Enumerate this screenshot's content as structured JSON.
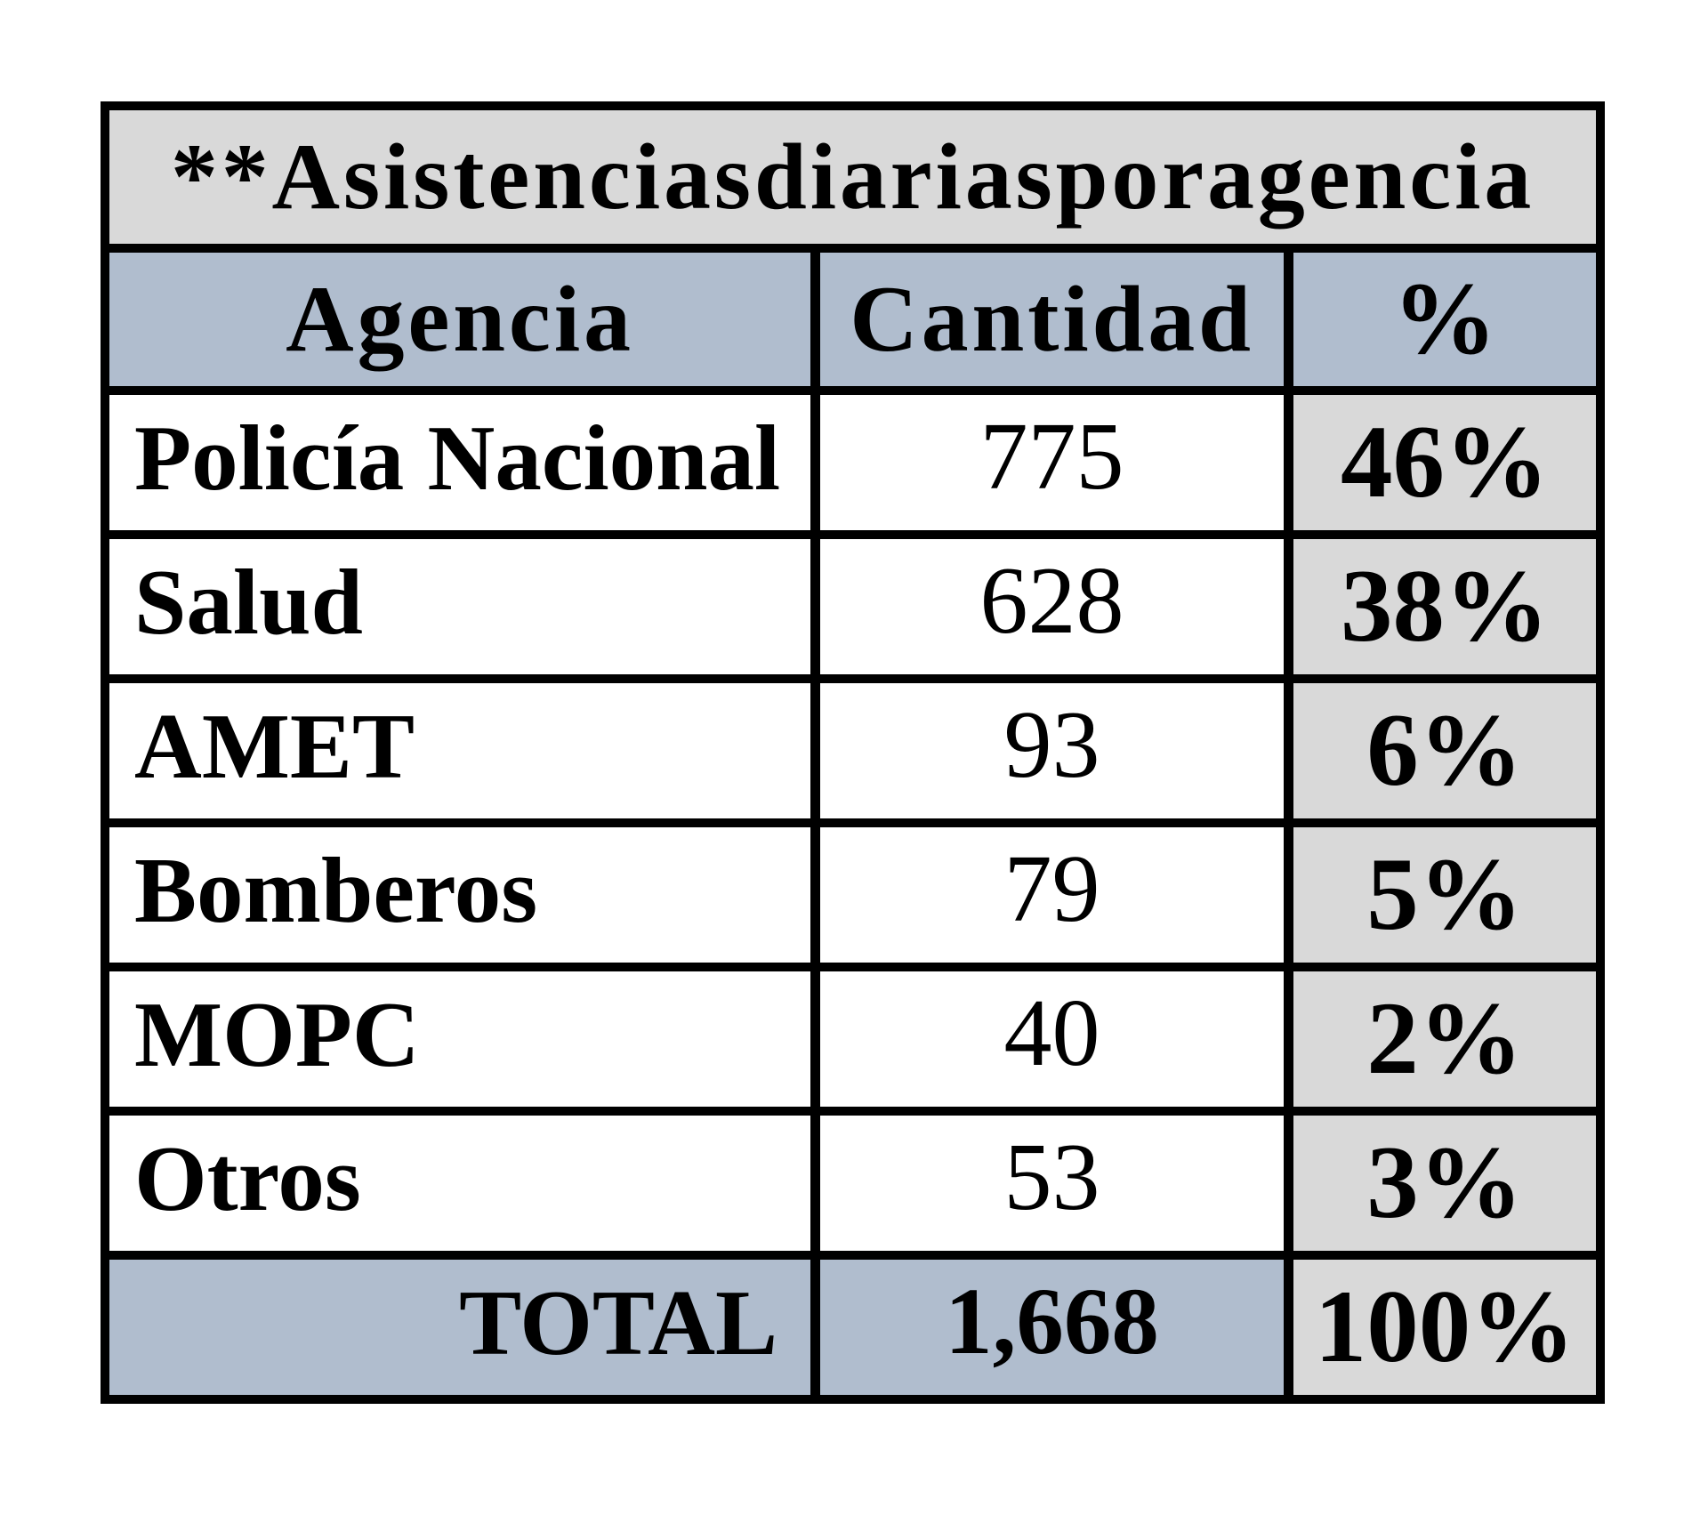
{
  "colors": {
    "page_background": "#ffffff",
    "border": "#000000",
    "title_row_background": "#d9d9d9",
    "header_row_background": "#b0bdce",
    "percent_column_background": "#d9d9d9",
    "total_row_background": "#b0bdce",
    "data_cell_background": "#ffffff",
    "text": "#000000"
  },
  "table": {
    "title": "**Asistenciasdiariasporagencia",
    "headers": {
      "agencia": "Agencia",
      "cantidad": "Cantidad",
      "pct": "%"
    },
    "rows": [
      {
        "agencia": "Policía Nacional",
        "cantidad": "775",
        "pct": "46%"
      },
      {
        "agencia": "Salud",
        "cantidad": "628",
        "pct": "38%"
      },
      {
        "agencia": "AMET",
        "cantidad": "93",
        "pct": "6%"
      },
      {
        "agencia": "Bomberos",
        "cantidad": "79",
        "pct": "5%"
      },
      {
        "agencia": "MOPC",
        "cantidad": "40",
        "pct": "2%"
      },
      {
        "agencia": "Otros",
        "cantidad": "53",
        "pct": "3%"
      }
    ],
    "total": {
      "label": "TOTAL",
      "cantidad": "1,668",
      "pct": "100%"
    }
  },
  "chart_data": {
    "type": "table",
    "title": "**Asistenciasdiariasporagencia",
    "columns": [
      "Agencia",
      "Cantidad",
      "%"
    ],
    "categories": [
      "Policía Nacional",
      "Salud",
      "AMET",
      "Bomberos",
      "MOPC",
      "Otros"
    ],
    "series": [
      {
        "name": "Cantidad",
        "values": [
          775,
          628,
          93,
          79,
          40,
          53
        ]
      },
      {
        "name": "%",
        "values": [
          46,
          38,
          6,
          5,
          2,
          3
        ]
      }
    ],
    "total": {
      "label": "TOTAL",
      "cantidad": 1668,
      "pct": 100
    }
  }
}
